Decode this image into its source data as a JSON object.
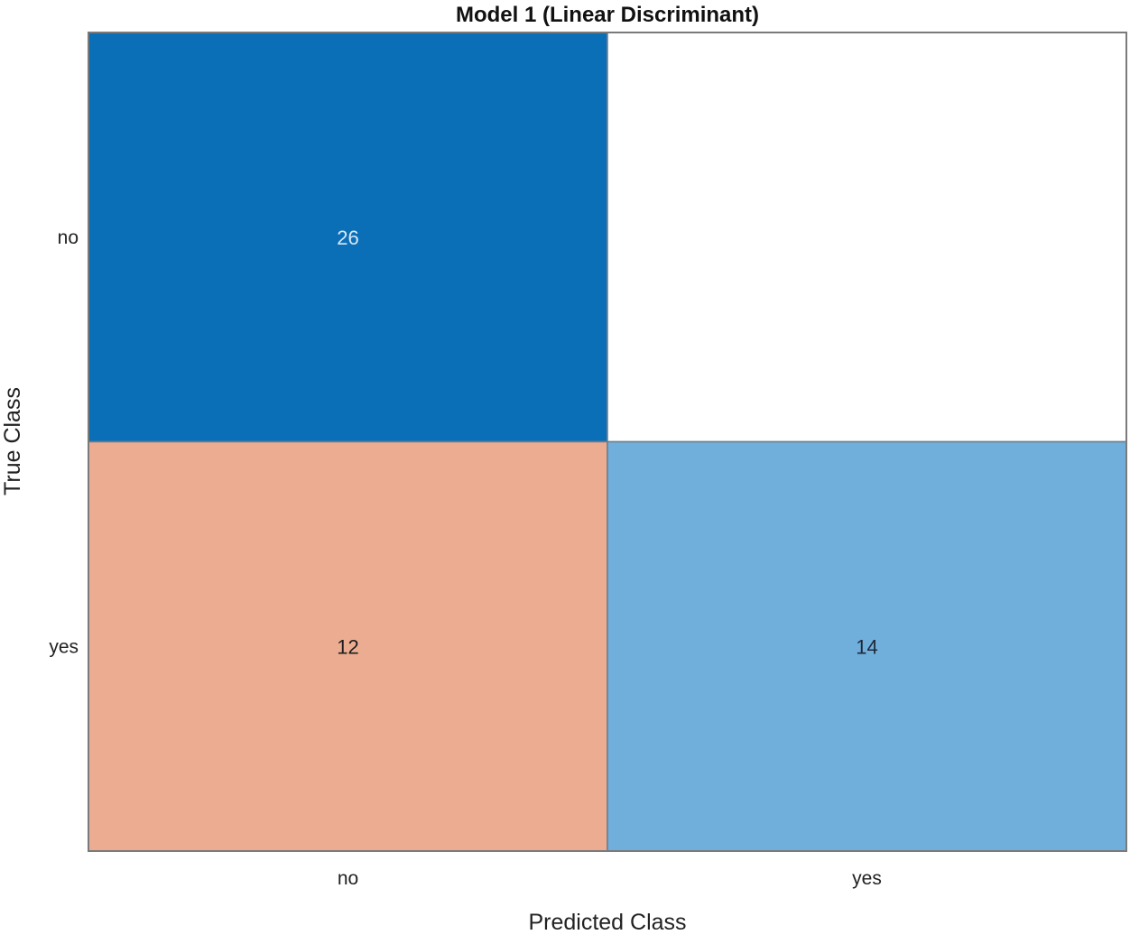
{
  "chart_data": {
    "type": "heatmap",
    "title": "Model 1 (Linear Discriminant)",
    "xlabel": "Predicted Class",
    "ylabel": "True Class",
    "x_categories": [
      "no",
      "yes"
    ],
    "y_categories": [
      "no",
      "yes"
    ],
    "cells": [
      {
        "row": 0,
        "col": 0,
        "true_class": "no",
        "predicted_class": "no",
        "value": 26,
        "label": "26",
        "fill_color": "#0b6fb8",
        "text_color": "#d8e8f5"
      },
      {
        "row": 0,
        "col": 1,
        "true_class": "no",
        "predicted_class": "yes",
        "value": 0,
        "label": "",
        "fill_color": "#ffffff",
        "text_color": "#222222"
      },
      {
        "row": 1,
        "col": 0,
        "true_class": "yes",
        "predicted_class": "no",
        "value": 12,
        "label": "12",
        "fill_color": "#ecac91",
        "text_color": "#1e1e1e"
      },
      {
        "row": 1,
        "col": 1,
        "true_class": "yes",
        "predicted_class": "yes",
        "value": 14,
        "label": "14",
        "fill_color": "#70aedc",
        "text_color": "#1e2a38"
      }
    ],
    "grid": false
  }
}
